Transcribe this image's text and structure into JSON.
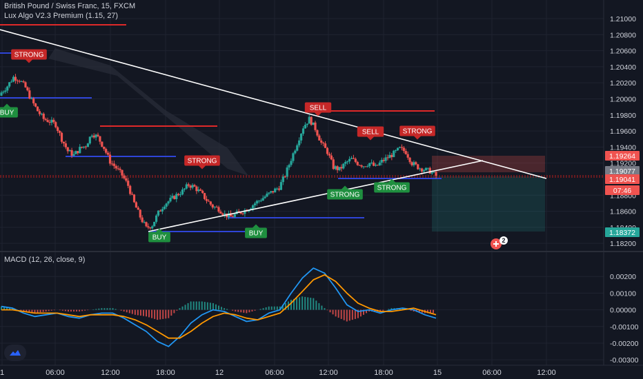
{
  "header": {
    "title": "British Pound / Swiss Franc, 15, FXCM",
    "indicator": "Lux Algo V2.3 Premium (1.15, 27)",
    "macd_label": "MACD (12, 26, close, 9)"
  },
  "colors": {
    "background": "#131722",
    "grid": "#1f2330",
    "up": "#26a69a",
    "down": "#ef5350",
    "macd_line": "#2196f3",
    "signal_line": "#ff9800",
    "trendline": "#ffffff",
    "resistance": "#e02929",
    "support": "#2f45d8",
    "buy_tag": "#1f8f3f",
    "sell_tag": "#c62828"
  },
  "chart_data": [
    {
      "type": "candlestick",
      "title": "British Pound / Swiss Franc, 15, FXCM",
      "x_ticks": [
        "1",
        "06:00",
        "12:00",
        "18:00",
        "12",
        "06:00",
        "12:00",
        "18:00",
        "15",
        "06:00",
        "12:00"
      ],
      "y_ticks": [
        "1.21000",
        "1.20800",
        "1.20600",
        "1.20400",
        "1.20200",
        "1.20000",
        "1.19800",
        "1.19600",
        "1.19400",
        "1.19200",
        "1.18800",
        "1.18600",
        "1.18400",
        "1.18200"
      ],
      "ylim": [
        1.1815,
        1.2112
      ],
      "close_path": [
        1.2008,
        1.2016,
        1.2027,
        1.2024,
        1.2014,
        1.1998,
        1.1985,
        1.1975,
        1.1972,
        1.1968,
        1.195,
        1.1935,
        1.193,
        1.1938,
        1.1942,
        1.1957,
        1.1952,
        1.1939,
        1.1922,
        1.1914,
        1.1905,
        1.1892,
        1.187,
        1.1853,
        1.1839,
        1.1843,
        1.1858,
        1.1869,
        1.1874,
        1.188,
        1.1885,
        1.1893,
        1.189,
        1.1883,
        1.1874,
        1.1866,
        1.1863,
        1.1856,
        1.1853,
        1.1857,
        1.186,
        1.1864,
        1.187,
        1.1875,
        1.188,
        1.1885,
        1.189,
        1.1905,
        1.1925,
        1.1945,
        1.1965,
        1.1975,
        1.1963,
        1.1945,
        1.1934,
        1.1915,
        1.1912,
        1.192,
        1.1925,
        1.192,
        1.1917,
        1.192,
        1.1915,
        1.1922,
        1.1927,
        1.1932,
        1.1938,
        1.1934,
        1.192,
        1.1915,
        1.1912,
        1.191,
        1.1904
      ],
      "price_labels": [
        {
          "text": "1.19264",
          "color": "#ef5350"
        },
        {
          "text": "1.19077",
          "color": "#787b86"
        },
        {
          "text": "1.19041",
          "color": "#ef5350"
        },
        {
          "text": "07:46",
          "color": "#ef5350"
        },
        {
          "text": "1.18372",
          "color": "#26a69a"
        }
      ],
      "signal_tags": [
        {
          "text": "STRONG",
          "kind": "sell"
        },
        {
          "text": "BUY",
          "kind": "buy"
        },
        {
          "text": "STRONG",
          "kind": "sell"
        },
        {
          "text": "BUY",
          "kind": "buy"
        },
        {
          "text": "BUY",
          "kind": "buy"
        },
        {
          "text": "SELL",
          "kind": "sell"
        },
        {
          "text": "SELL",
          "kind": "sell"
        },
        {
          "text": "STRONG",
          "kind": "sell"
        },
        {
          "text": "STRONG",
          "kind": "buy"
        },
        {
          "text": "STRONG",
          "kind": "buy"
        }
      ],
      "event_badge": "2"
    },
    {
      "type": "line",
      "title": "MACD (12, 26, close, 9)",
      "y_ticks": [
        "0.00200",
        "0.00100",
        "0.00000",
        "-0.00100",
        "-0.00200",
        "-0.00300"
      ],
      "ylim": [
        -0.0032,
        0.003
      ],
      "series": [
        {
          "name": "MACD",
          "values": [
            0.0002,
            0.0001,
            -0.0002,
            -0.0004,
            -0.0003,
            -0.0002,
            -0.0004,
            -0.0005,
            -0.0003,
            -0.0002,
            -0.0002,
            -0.0005,
            -0.0009,
            -0.0013,
            -0.0019,
            -0.0022,
            -0.0016,
            -0.0008,
            -0.0003,
            0.0,
            -0.0001,
            -0.0004,
            -0.0007,
            -0.0006,
            -0.0002,
            0.0,
            0.001,
            0.0019,
            0.0025,
            0.0022,
            0.0013,
            0.0003,
            -0.0001,
            0.0,
            -0.0002,
            0.0,
            0.0001,
            0.0,
            -0.0003,
            -0.0005
          ]
        },
        {
          "name": "Signal",
          "values": [
            0.0,
            0.0,
            -0.0001,
            -0.0002,
            -0.0002,
            -0.0002,
            -0.0003,
            -0.0004,
            -0.0003,
            -0.0003,
            -0.0003,
            -0.0004,
            -0.0006,
            -0.0009,
            -0.0013,
            -0.0017,
            -0.0017,
            -0.0013,
            -0.0008,
            -0.0004,
            -0.0002,
            -0.0003,
            -0.0005,
            -0.0006,
            -0.0004,
            -0.0002,
            0.0004,
            0.0011,
            0.0018,
            0.0021,
            0.0017,
            0.001,
            0.0004,
            0.0001,
            -0.0001,
            -0.0001,
            0.0,
            0.0001,
            -0.0001,
            -0.0003
          ]
        }
      ],
      "histogram": [
        0.0002,
        0.0001,
        -0.0001,
        -0.0002,
        -0.0001,
        0.0,
        -0.0001,
        -0.0001,
        0.0,
        0.0001,
        0.0001,
        -0.0001,
        -0.0003,
        -0.0004,
        -0.0006,
        -0.0005,
        0.0001,
        0.0005,
        0.0005,
        0.0004,
        0.0001,
        -0.0001,
        -0.0002,
        0.0,
        0.0002,
        0.0002,
        0.0006,
        0.0008,
        0.0007,
        0.0001,
        -0.0004,
        -0.0007,
        -0.0005,
        -0.0001,
        -0.0001,
        0.0001,
        0.0001,
        -0.0001,
        -0.0002,
        -0.0002
      ]
    }
  ]
}
